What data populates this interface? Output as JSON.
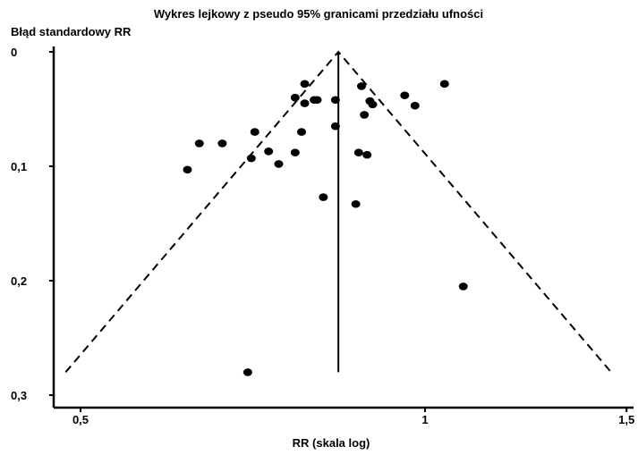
{
  "chart_data": {
    "type": "scatter",
    "title": "Wykres lejkowy z pseudo 95% granicami przedziału ufności",
    "xlabel": "RR (skala log)",
    "ylabel": "Błąd standardowy RR",
    "x_scale": "log",
    "y_inverted": true,
    "xlim": [
      0.47,
      1.55
    ],
    "ylim": [
      0,
      0.31
    ],
    "x_ticks": [
      0.5,
      1,
      1.5
    ],
    "x_tick_labels": [
      "0,5",
      "1",
      "1,5"
    ],
    "y_ticks": [
      0,
      0.1,
      0.2,
      0.3
    ],
    "y_tick_labels": [
      "0",
      "0,1",
      "0,2",
      "0,3"
    ],
    "pooled_rr": 0.84,
    "funnel_limit": "pseudo 95%",
    "funnel_se_max": 0.28,
    "grid": false,
    "points": [
      {
        "rr": 0.62,
        "se": 0.103
      },
      {
        "rr": 0.635,
        "se": 0.08
      },
      {
        "rr": 0.665,
        "se": 0.08
      },
      {
        "rr": 0.7,
        "se": 0.28
      },
      {
        "rr": 0.705,
        "se": 0.093
      },
      {
        "rr": 0.71,
        "se": 0.07
      },
      {
        "rr": 0.73,
        "se": 0.087
      },
      {
        "rr": 0.745,
        "se": 0.098
      },
      {
        "rr": 0.77,
        "se": 0.088
      },
      {
        "rr": 0.77,
        "se": 0.04
      },
      {
        "rr": 0.78,
        "se": 0.07
      },
      {
        "rr": 0.785,
        "se": 0.045
      },
      {
        "rr": 0.785,
        "se": 0.028
      },
      {
        "rr": 0.8,
        "se": 0.042
      },
      {
        "rr": 0.805,
        "se": 0.042
      },
      {
        "rr": 0.815,
        "se": 0.127
      },
      {
        "rr": 0.835,
        "se": 0.042
      },
      {
        "rr": 0.835,
        "se": 0.065
      },
      {
        "rr": 0.87,
        "se": 0.133
      },
      {
        "rr": 0.875,
        "se": 0.088
      },
      {
        "rr": 0.88,
        "se": 0.03
      },
      {
        "rr": 0.885,
        "se": 0.055
      },
      {
        "rr": 0.89,
        "se": 0.09
      },
      {
        "rr": 0.895,
        "se": 0.043
      },
      {
        "rr": 0.9,
        "se": 0.046
      },
      {
        "rr": 0.96,
        "se": 0.038
      },
      {
        "rr": 0.98,
        "se": 0.047
      },
      {
        "rr": 1.04,
        "se": 0.028
      },
      {
        "rr": 1.08,
        "se": 0.205
      }
    ]
  }
}
